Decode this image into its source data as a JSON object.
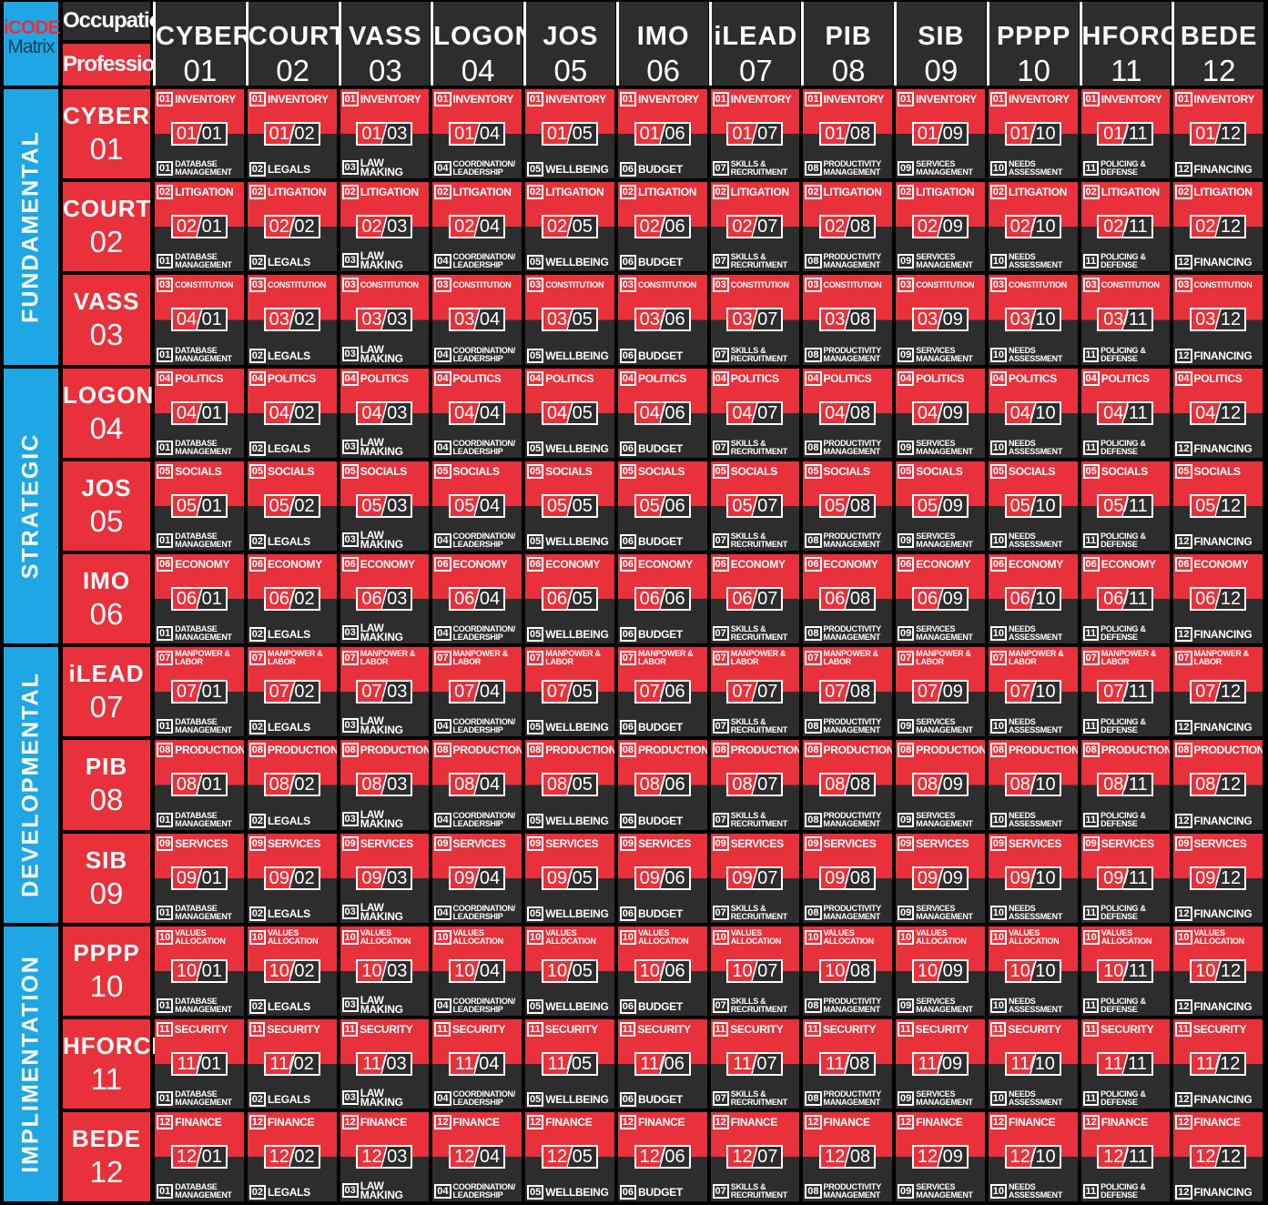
{
  "logo": {
    "line1": "iCODE",
    "line2": "Matrix"
  },
  "header": {
    "occupation_label": "Occupation",
    "profession_label": "Profession"
  },
  "columns": [
    {
      "name": "CYBER",
      "code": "01",
      "profession": "DATABASE\nMANAGEMENT"
    },
    {
      "name": "COURT",
      "code": "02",
      "profession": "LEGALS"
    },
    {
      "name": "VASS",
      "code": "03",
      "profession": "LAW MAKING"
    },
    {
      "name": "LOGON",
      "code": "04",
      "profession": "COORDINATION/\nLEADERSHIP"
    },
    {
      "name": "JOS",
      "code": "05",
      "profession": "WELLBEING"
    },
    {
      "name": "IMO",
      "code": "06",
      "profession": "BUDGET"
    },
    {
      "name": "iLEAD",
      "code": "07",
      "profession": "SKILLS &\nRECRUITMENT"
    },
    {
      "name": "PIB",
      "code": "08",
      "profession": "PRODUCTIVITY\nMANAGEMENT"
    },
    {
      "name": "SIB",
      "code": "09",
      "profession": "SERVICES\nMANAGEMENT"
    },
    {
      "name": "PPPP",
      "code": "10",
      "profession": "NEEDS\nASSESSMENT"
    },
    {
      "name": "HFORCE",
      "code": "11",
      "profession": "POLICING &\nDEFENSE"
    },
    {
      "name": "BEDE",
      "code": "12",
      "profession": "FINANCING"
    }
  ],
  "rows": [
    {
      "name": "CYBER",
      "code": "01",
      "occupation": "INVENTORY"
    },
    {
      "name": "COURT",
      "code": "02",
      "occupation": "LITIGATION"
    },
    {
      "name": "VASS",
      "code": "03",
      "occupation": "CONSTITUTION"
    },
    {
      "name": "LOGON",
      "code": "04",
      "occupation": "POLITICS"
    },
    {
      "name": "JOS",
      "code": "05",
      "occupation": "SOCIALS"
    },
    {
      "name": "IMO",
      "code": "06",
      "occupation": "ECONOMY"
    },
    {
      "name": "iLEAD",
      "code": "07",
      "occupation": "MANPOWER &\nLABOR"
    },
    {
      "name": "PIB",
      "code": "08",
      "occupation": "PRODUCTION"
    },
    {
      "name": "SIB",
      "code": "09",
      "occupation": "SERVICES"
    },
    {
      "name": "PPPP",
      "code": "10",
      "occupation": "VALUES\nALLOCATION"
    },
    {
      "name": "HFORCE",
      "code": "11",
      "occupation": "SECURITY"
    },
    {
      "name": "BEDE",
      "code": "12",
      "occupation": "FINANCE"
    }
  ],
  "groups": [
    "FUNDAMENTAL",
    "STRATEGIC",
    "DEVELOPMENTAL",
    "IMPLIMENTATION"
  ],
  "cell_code_overrides": {
    "2-0": [
      "04",
      "01"
    ]
  },
  "colors": {
    "red": "#e8313a",
    "dark": "#2d2d2d",
    "blue": "#1ea7e4"
  }
}
